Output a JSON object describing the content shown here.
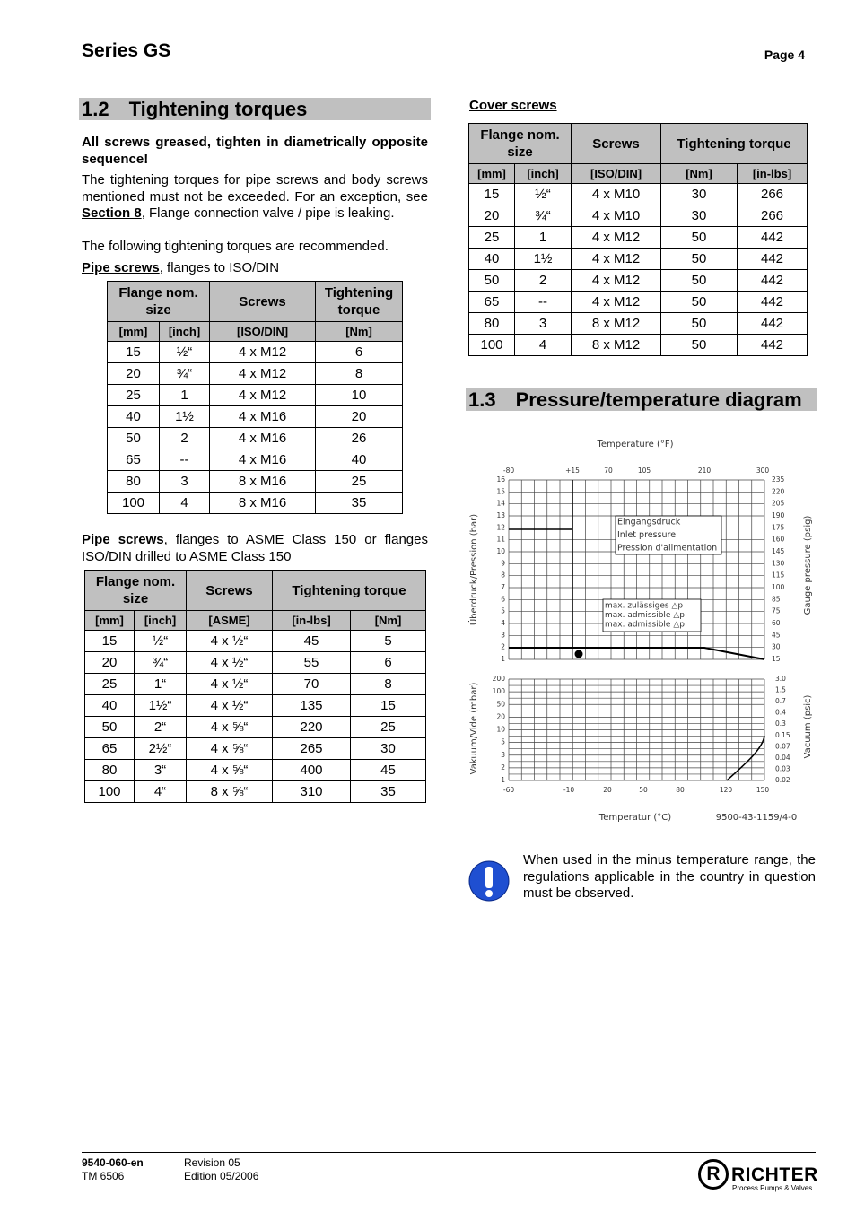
{
  "header": {
    "title": "Series GS",
    "page": "Page 4"
  },
  "section_1_2": {
    "number": "1.2",
    "title": "Tightening torques",
    "note": "All screws greased, tighten in diametrically opposite sequence!",
    "para1_before": "The tightening torques for pipe screws and body screws mentioned must not be exceeded. For an exception, see ",
    "para1_link": "Section 8",
    "para1_after": ", Flange connection valve / pipe is leaking.",
    "para2": "The following tightening torques are recommended."
  },
  "table1": {
    "caption_bold": "Pipe screws",
    "caption_rest": ", flanges to ISO/DIN",
    "headers": [
      "Flange nom. size",
      "Screws",
      "Tightening torque"
    ],
    "units": [
      "[mm]",
      "[inch]",
      "[ISO/DIN]",
      "[Nm]"
    ],
    "rows": [
      [
        "15",
        "½“",
        "4 x M12",
        "6"
      ],
      [
        "20",
        "¾“",
        "4 x M12",
        "8"
      ],
      [
        "25",
        "1",
        "4 x M12",
        "10"
      ],
      [
        "40",
        "1½",
        "4 x M16",
        "20"
      ],
      [
        "50",
        "2",
        "4 x M16",
        "26"
      ],
      [
        "65",
        "--",
        "4 x M16",
        "40"
      ],
      [
        "80",
        "3",
        "8 x M16",
        "25"
      ],
      [
        "100",
        "4",
        "8 x M16",
        "35"
      ]
    ]
  },
  "table2": {
    "caption_bold": "Pipe screws",
    "caption_rest": ", flanges to ASME Class 150 or flanges ISO/DIN drilled to ASME Class 150",
    "headers": [
      "Flange nom. size",
      "Screws",
      "Tightening torque"
    ],
    "units": [
      "[mm]",
      "[inch]",
      "[ASME]",
      "[in-lbs]",
      "[Nm]"
    ],
    "rows": [
      [
        "15",
        "½“",
        "4 x ½“",
        "45",
        "5"
      ],
      [
        "20",
        "¾“",
        "4 x ½“",
        "55",
        "6"
      ],
      [
        "25",
        "1“",
        "4 x ½“",
        "70",
        "8"
      ],
      [
        "40",
        "1½“",
        "4 x ½“",
        "135",
        "15"
      ],
      [
        "50",
        "2“",
        "4 x ⅝“",
        "220",
        "25"
      ],
      [
        "65",
        "2½“",
        "4 x ⅝“",
        "265",
        "30"
      ],
      [
        "80",
        "3“",
        "4 x ⅝“",
        "400",
        "45"
      ],
      [
        "100",
        "4“",
        "8 x ⅝“",
        "310",
        "35"
      ]
    ]
  },
  "table3": {
    "caption_bold": "Cover screws",
    "headers": [
      "Flange nom. size",
      "Screws",
      "Tightening torque"
    ],
    "units": [
      "[mm]",
      "[inch]",
      "[ISO/DIN]",
      "[Nm]",
      "[in-lbs]"
    ],
    "rows": [
      [
        "15",
        "½“",
        "4 x M10",
        "30",
        "266"
      ],
      [
        "20",
        "¾“",
        "4 x M10",
        "30",
        "266"
      ],
      [
        "25",
        "1",
        "4 x M12",
        "50",
        "442"
      ],
      [
        "40",
        "1½",
        "4 x M12",
        "50",
        "442"
      ],
      [
        "50",
        "2",
        "4 x M12",
        "50",
        "442"
      ],
      [
        "65",
        "--",
        "4 x M12",
        "50",
        "442"
      ],
      [
        "80",
        "3",
        "8 x M12",
        "50",
        "442"
      ],
      [
        "100",
        "4",
        "8 x M12",
        "50",
        "442"
      ]
    ]
  },
  "section_1_3": {
    "number": "1.3",
    "title": "Pressure/temperature diagram"
  },
  "diagram": {
    "top_title": "Temperature (°F)",
    "bottom_title": "Temperatur (°C)",
    "code": "9500-43-1159/4-0",
    "left_upper_title": "Überdruck/Pression (bar)",
    "left_lower_title": "Vakuum/Vide (mbar)",
    "right_upper_title": "Gauge pressure (psig)",
    "right_lower_title": "Vacuum (psic)",
    "top_ticks": [
      "-80",
      "+15",
      "70",
      "105",
      "210",
      "300"
    ],
    "bottom_ticks": [
      "-60",
      "-10",
      "20",
      "50",
      "80",
      "120",
      "150"
    ],
    "left_upper_ticks": [
      "16",
      "15",
      "14",
      "13",
      "12",
      "11",
      "10",
      "9",
      "8",
      "7",
      "6",
      "5",
      "4",
      "3",
      "2",
      "1"
    ],
    "right_upper_ticks": [
      "235",
      "220",
      "205",
      "190",
      "175",
      "160",
      "145",
      "130",
      "115",
      "100",
      "85",
      "75",
      "60",
      "45",
      "30",
      "15"
    ],
    "left_lower_ticks": [
      "200",
      "100",
      "50",
      "20",
      "10",
      "5",
      "3",
      "2",
      "1"
    ],
    "right_lower_ticks": [
      "3.0",
      "1.5",
      "0.7",
      "0.4",
      "0.3",
      "0.15",
      "0.07",
      "0.04",
      "0.03",
      "0.02"
    ],
    "legend1": [
      "Eingangsdruck",
      "Inlet pressure",
      "Pression d'alimentation"
    ],
    "legend2": [
      "max. zulässiges △p",
      "max. admissible △p",
      "max. admissible △p"
    ]
  },
  "warning": "When used in the minus temperature range, the regulations applicable in the country in question must be observed.",
  "footer": {
    "doc": "9540-060-en",
    "tm": "TM 6506",
    "revision": "Revision 05",
    "edition": "Edition 05/2006"
  },
  "logo": {
    "mark": "R",
    "name": "RICHTER",
    "tagline": "Process Pumps & Valves"
  }
}
